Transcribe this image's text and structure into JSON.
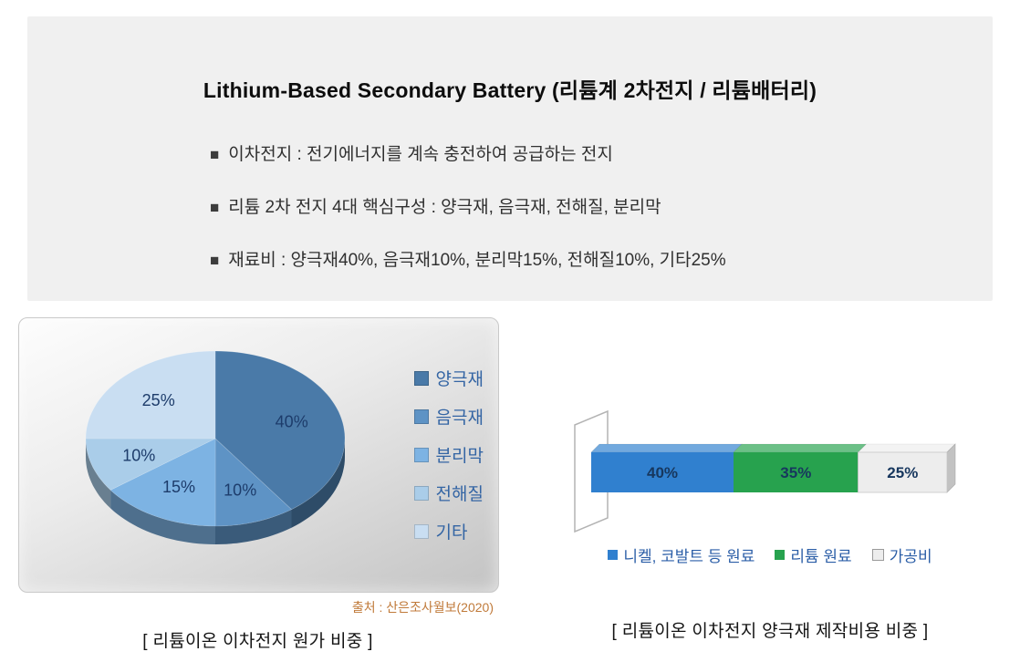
{
  "header": {
    "title": "Lithium-Based Secondary Battery (리튬계 2차전지 / 리튬배터리)",
    "bullet_marker": "■",
    "bullets": [
      "이차전지 : 전기에너지를 계속 충전하여 공급하는 전지",
      "리튬 2차 전지 4대 핵심구성 : 양극재, 음극재, 전해질, 분리막",
      "재료비 : 양극재40%, 음극재10%, 분리막15%, 전해질10%, 기타25%"
    ]
  },
  "chart_data": [
    {
      "type": "pie",
      "style": "3d",
      "title": "",
      "labels": [
        "양극재",
        "음극재",
        "분리막",
        "전해질",
        "기타"
      ],
      "values": [
        40,
        10,
        15,
        10,
        25
      ],
      "value_labels": [
        "40%",
        "10%",
        "15%",
        "10%",
        "25%"
      ],
      "colors": [
        "#4a7aa8",
        "#5e93c5",
        "#7db3e3",
        "#aacde9",
        "#c9def2"
      ],
      "label_color": "#1d3c6b",
      "legend_text_color": "#3465a4",
      "legend_position": "right",
      "start_angle_deg": -90,
      "source": "출처 : 산은조사월보(2020)",
      "caption": "[ 리튬이온 이차전지 원가 비중 ]"
    },
    {
      "type": "bar",
      "style": "horizontal-stacked-3d",
      "title": "",
      "segments": [
        {
          "label": "니켈, 코발트 등 원료",
          "value": 40,
          "value_label": "40%",
          "color": "#3080cf"
        },
        {
          "label": "리튬 원료",
          "value": 35,
          "value_label": "35%",
          "color": "#27a24e"
        },
        {
          "label": "가공비",
          "value": 25,
          "value_label": "25%",
          "color": "#ededed"
        }
      ],
      "xlim": [
        0,
        100
      ],
      "label_color": "#17375e",
      "legend_text_color": "#2b5ea7",
      "legend_position": "bottom",
      "caption": "[ 리튬이온 이차전지 양극재 제작비용 비중 ]"
    }
  ]
}
